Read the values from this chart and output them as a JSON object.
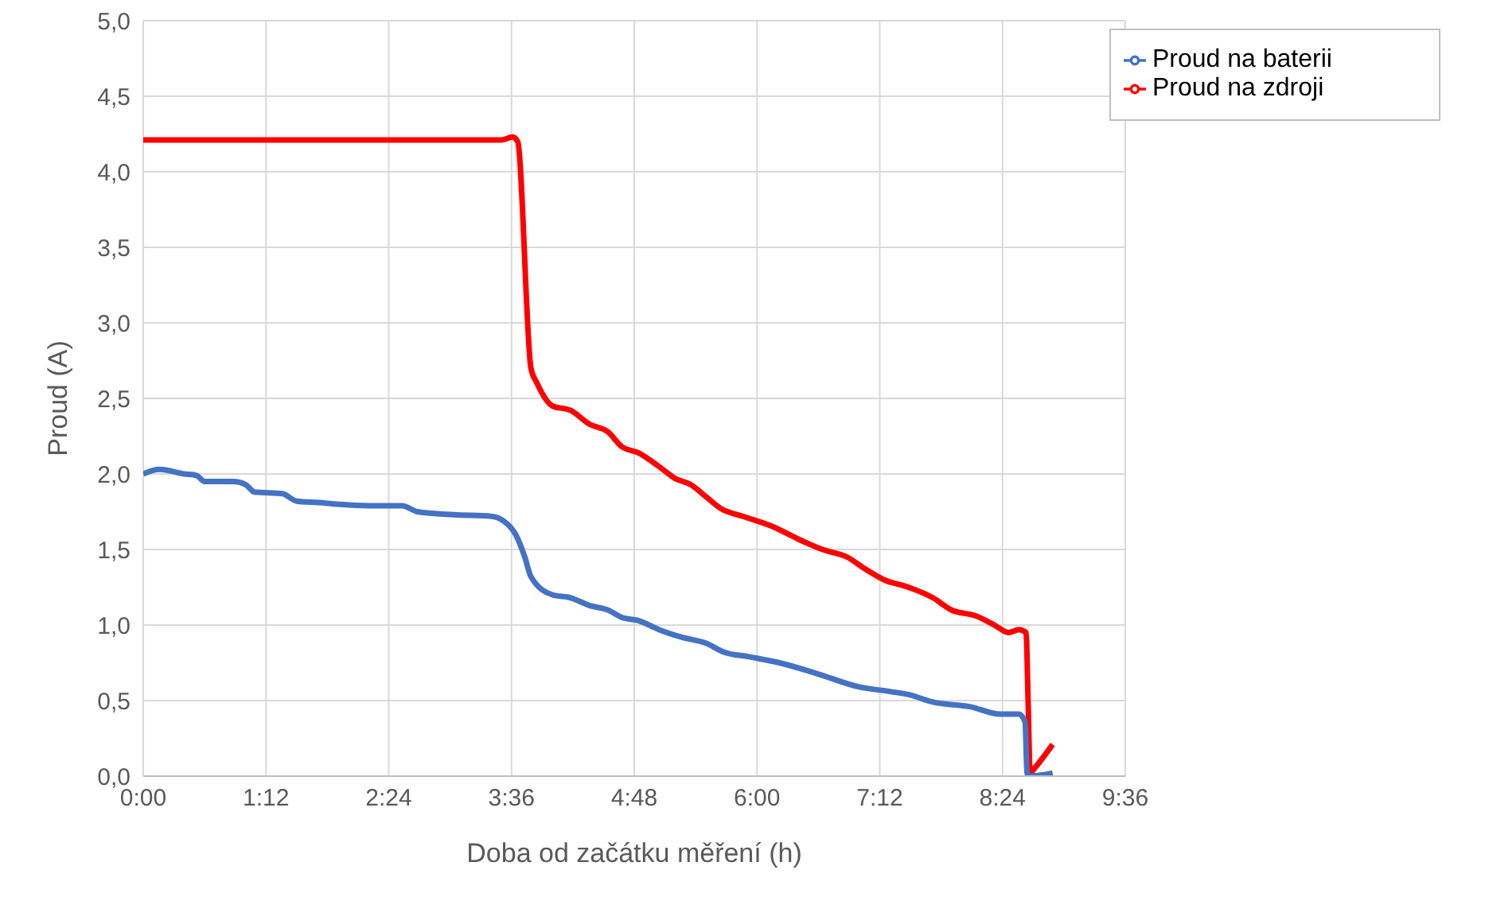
{
  "chart_data": {
    "type": "line",
    "xlabel": "Doba od začátku měření (h)",
    "ylabel": "Proud (A)",
    "xlim": [
      0,
      9.6
    ],
    "xticks": [
      {
        "value": 0,
        "label": "0:00"
      },
      {
        "value": 1.2,
        "label": "1:12"
      },
      {
        "value": 2.4,
        "label": "2:24"
      },
      {
        "value": 3.6,
        "label": "3:36"
      },
      {
        "value": 4.8,
        "label": "4:48"
      },
      {
        "value": 6,
        "label": "6:00"
      },
      {
        "value": 7.2,
        "label": "7:12"
      },
      {
        "value": 8.4,
        "label": "8:24"
      },
      {
        "value": 9.6,
        "label": "9:36"
      }
    ],
    "ylim": [
      0,
      5
    ],
    "yticks": [
      {
        "value": 0,
        "label": "0,0"
      },
      {
        "value": 0.5,
        "label": "0,5"
      },
      {
        "value": 1,
        "label": "1,0"
      },
      {
        "value": 1.5,
        "label": "1,5"
      },
      {
        "value": 2,
        "label": "2,0"
      },
      {
        "value": 2.5,
        "label": "2,5"
      },
      {
        "value": 3,
        "label": "3,0"
      },
      {
        "value": 3.5,
        "label": "3,5"
      },
      {
        "value": 4,
        "label": "4,0"
      },
      {
        "value": 4.5,
        "label": "4,5"
      },
      {
        "value": 5,
        "label": "5,0"
      }
    ],
    "grid": true,
    "legend": "top right",
    "marker": "none",
    "line_style": "solid",
    "series": [
      {
        "name": "Proud na zdroji",
        "color": "#ff0000",
        "x": [
          0,
          0.5,
          1,
          2,
          3,
          3.4,
          3.5,
          3.61,
          3.66,
          3.79,
          3.85,
          4.0,
          4.18,
          4.36,
          4.54,
          4.68,
          4.84,
          5.04,
          5.2,
          5.35,
          5.5,
          5.65,
          5.86,
          6.16,
          6.4,
          6.64,
          6.88,
          7.06,
          7.24,
          7.48,
          7.72,
          7.9,
          8.14,
          8.32,
          8.46,
          8.56,
          8.63,
          8.65,
          8.67,
          8.71,
          8.89
        ],
        "values": [
          4.21,
          4.21,
          4.21,
          4.21,
          4.21,
          4.21,
          4.21,
          4.23,
          4.2,
          2.7,
          2.6,
          2.45,
          2.42,
          2.33,
          2.28,
          2.18,
          2.14,
          2.05,
          1.97,
          1.93,
          1.85,
          1.77,
          1.72,
          1.65,
          1.57,
          1.5,
          1.45,
          1.37,
          1.3,
          1.25,
          1.18,
          1.1,
          1.06,
          1.0,
          0.95,
          0.97,
          0.95,
          0.5,
          0.02,
          0.05,
          0.21
        ]
      },
      {
        "name": "Proud na baterii",
        "color": "#4472c4",
        "x": [
          0,
          0.16,
          0.4,
          0.52,
          0.6,
          0.88,
          1.0,
          1.09,
          1.36,
          1.5,
          1.72,
          1.9,
          2.2,
          2.53,
          2.68,
          3.04,
          3.4,
          3.52,
          3.64,
          3.73,
          3.79,
          4.0,
          4.18,
          4.36,
          4.54,
          4.68,
          4.84,
          5.04,
          5.26,
          5.5,
          5.68,
          5.92,
          6.22,
          6.58,
          7.0,
          7.3,
          7.48,
          7.72,
          8.08,
          8.38,
          8.56,
          8.62,
          8.64,
          8.66,
          8.89
        ],
        "values": [
          2.0,
          2.03,
          2.0,
          1.99,
          1.95,
          1.95,
          1.93,
          1.88,
          1.87,
          1.82,
          1.81,
          1.8,
          1.79,
          1.79,
          1.75,
          1.73,
          1.72,
          1.69,
          1.6,
          1.45,
          1.32,
          1.2,
          1.18,
          1.13,
          1.1,
          1.05,
          1.03,
          0.97,
          0.92,
          0.88,
          0.82,
          0.79,
          0.75,
          0.68,
          0.59,
          0.56,
          0.54,
          0.49,
          0.46,
          0.41,
          0.41,
          0.36,
          0.02,
          0.0,
          0.02
        ]
      }
    ]
  }
}
